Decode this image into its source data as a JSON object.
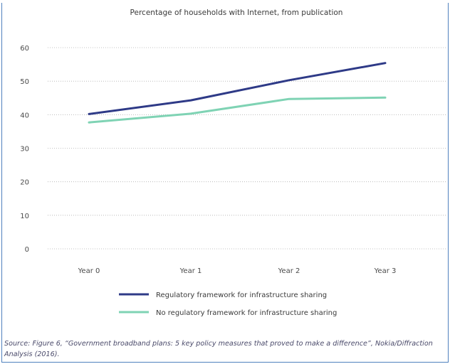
{
  "chart_data": {
    "type": "line",
    "title": "Percentage of households with Internet, from publication",
    "categories": [
      "Year 0",
      "Year 1",
      "Year 2",
      "Year 3"
    ],
    "ylim": [
      0,
      60
    ],
    "yticks": [
      0,
      10,
      20,
      30,
      40,
      50,
      60
    ],
    "grid": true,
    "legend_position": "bottom",
    "series": [
      {
        "name": "Regulatory framework for infrastructure sharing",
        "values": [
          40.2,
          44.3,
          50.3,
          55.4
        ],
        "color": "#2e3a87"
      },
      {
        "name": "No regulatory framework for infrastructure sharing",
        "values": [
          37.7,
          40.3,
          44.7,
          45.1
        ],
        "color": "#7fd3b4"
      }
    ]
  },
  "source": "Source: Figure 6, “Government broadband plans: 5 key policy measures that proved to make a difference”, Nokia/Diffraction Analysis (2016)."
}
